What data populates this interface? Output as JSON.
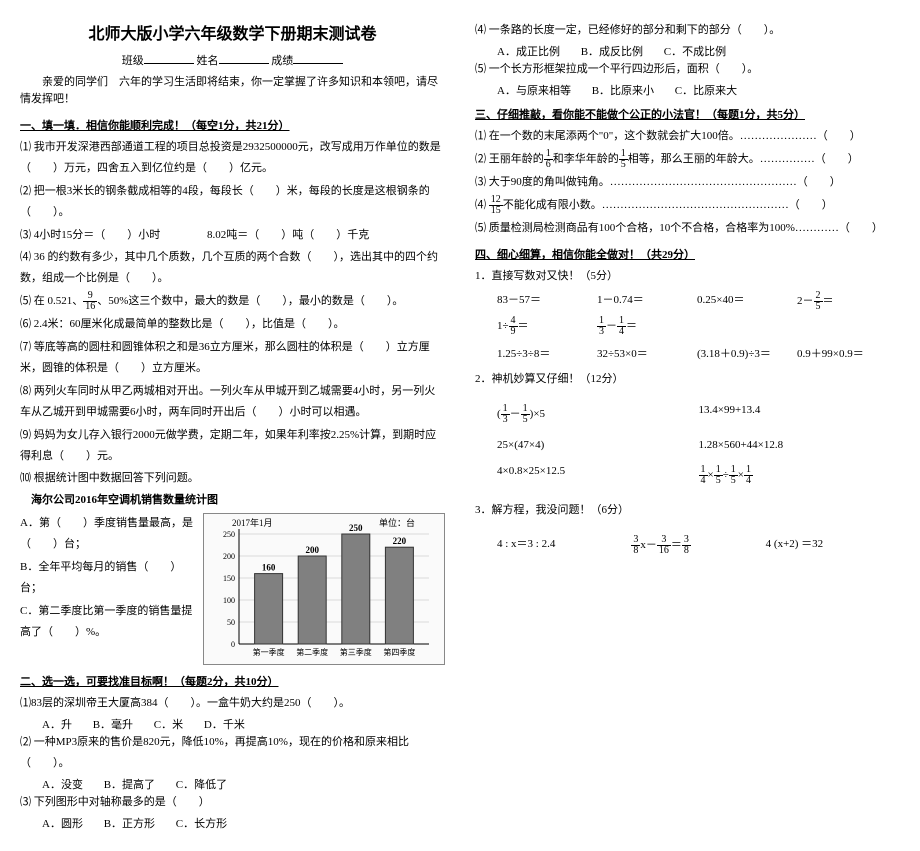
{
  "title": "北师大版小学六年级数学下册期末测试卷",
  "head_labels": {
    "class": "班级",
    "name": "姓名",
    "score": "成绩"
  },
  "intro": "亲爱的同学们　六年的学习生活即将结束，你一定掌握了许多知识和本领吧，请尽情发挥吧！",
  "sec1": {
    "title": "一、填一填．相信你能顺利完成！（每空1分，共21分）",
    "q1": "⑴ 我市开发深港西部通道工程的项目总投资是2932500000元，改写成用万作单位的数是（　　）万元，四舍五入到亿位约是（　　）亿元。",
    "q2": "⑵ 把一根3米长的钢条截成相等的4段，每段长（　　）米，每段的长度是这根钢条的（　　）。",
    "q3_a": "⑶ 4小时15分＝（　　）小时",
    "q3_b": "8.02吨＝（　　）吨（　　）千克",
    "q4": "⑷ 36 的约数有多少，其中几个质数，几个互质的两个合数（　　），选出其中的四个约数，组成一个比例是（　　）。",
    "q5_pre": "⑸ 在 0.521、",
    "q5_mid": "、50%这三个数中，最大的数是（　　），最小的数是（　　）。",
    "q6": "⑹ 2.4米：60厘米化成最简单的整数比是（　　），比值是（　　）。",
    "q7": "⑺ 等底等高的圆柱和圆锥体积之和是36立方厘米，那么圆柱的体积是（　　）立方厘米，圆锥的体积是（　　）立方厘米。",
    "q8": "⑻ 两列火车同时从甲乙两城相对开出。一列火车从甲城开到乙城需要4小时，另一列火车从乙城开到甲城需要6小时，两车同时开出后（　　）小时可以相遇。",
    "q9": "⑼ 妈妈为女儿存入银行2000元做学费，定期二年，如果年利率按2.25%计算，到期时应得利息（　　）元。",
    "q10": "⑽ 根据统计图中数据回答下列问题。",
    "chart_title": "海尔公司2016年空调机销售数量统计图",
    "chart_date": "2017年1月",
    "chart_unit": "单位：台",
    "chart": {
      "bars": [
        160,
        200,
        250,
        220
      ],
      "xlabels": [
        "第一季度",
        "第二季度",
        "第三季度",
        "第四季度"
      ],
      "ymax": 250,
      "ystep": 50,
      "bar_color": "#808080",
      "grid_color": "#bbb",
      "bg": "#fafafa"
    },
    "cA": "A．第（　　）季度销售量最高，是（　　）台；",
    "cB": "B．全年平均每月的销售（　　）台；",
    "cC": "C．第二季度比第一季度的销售量提高了（　　）%。"
  },
  "sec2": {
    "title": "二、选一选，可要找准目标啊！（每题2分，共10分）",
    "q1": "⑴83层的深圳帝王大厦高384（　　）。一盒牛奶大约是250（　　）。",
    "q1o": {
      "A": "A．升",
      "B": "B．毫升",
      "C": "C．米",
      "D": "D．千米"
    },
    "q2": "⑵ 一种MP3原来的售价是820元，降低10%，再提高10%，现在的价格和原来相比（　　）。",
    "q2o": {
      "A": "A．没变",
      "B": "B．提高了",
      "C": "C．降低了"
    },
    "q3": "⑶ 下列图形中对轴称最多的是（　　）",
    "q3o": {
      "A": "A．圆形",
      "B": "B．正方形",
      "C": "C．长方形"
    },
    "q4": "⑷ 一条路的长度一定，已经修好的部分和剩下的部分（　　）。",
    "q4o": {
      "A": "A．成正比例",
      "B": "B．成反比例",
      "C": "C．不成比例"
    },
    "q5": "⑸ 一个长方形框架拉成一个平行四边形后，面积（　　）。",
    "q5o": {
      "A": "A．与原来相等",
      "B": "B．比原来小",
      "C": "C．比原来大"
    }
  },
  "sec3": {
    "title": "三、仔细推敲，看你能不能做个公正的小法官！（每题1分，共5分）",
    "q1": "⑴ 在一个数的末尾添两个\"0\"，这个数就会扩大100倍。…………………（　　）",
    "q2a": "⑵ 王丽年龄的",
    "q2b": "和李华年龄的",
    "q2c": "相等，那么王丽的年龄大。……………（　　）",
    "q3": "⑶ 大于90度的角叫做钝角。……………………………………………（　　）",
    "q4a": "⑷ ",
    "q4b": "不能化成有限小数。……………………………………………（　　）",
    "q5": "⑸ 质量检测局检测商品有100个合格，10个不合格，合格率为100%…………（　　）"
  },
  "sec4": {
    "title": "四、细心细算，相信你能全做对！（共29分）",
    "p1": "1．直接写数对又快！（5分）",
    "r1": [
      "83－57＝",
      "1－0.74＝",
      "0.25×40＝",
      "2－",
      "1÷",
      "－"
    ],
    "r2": [
      "1.25÷3÷8＝",
      "32÷53×0＝",
      "(3.18＋0.9)÷3＝",
      "0.9＋99×0.9＝"
    ],
    "p2": "2．神机妙算又仔细！（12分）",
    "c1a": "(",
    "c1b": "－",
    "c1c": ")×5",
    "c2": "13.4×99+13.4",
    "c3": "25×(47×4)",
    "c4": "1.28×560+44×12.8",
    "c5": "4×0.8×25×12.5",
    "c6a": "×",
    "c6b": "÷",
    "c6c": "×",
    "p3": "3．解方程，我没问题！（6分）",
    "e1": "4 : x＝3 : 2.4",
    "e2a": "x－",
    "e2b": "＝",
    "e3": "4 (x+2)  ＝32"
  }
}
